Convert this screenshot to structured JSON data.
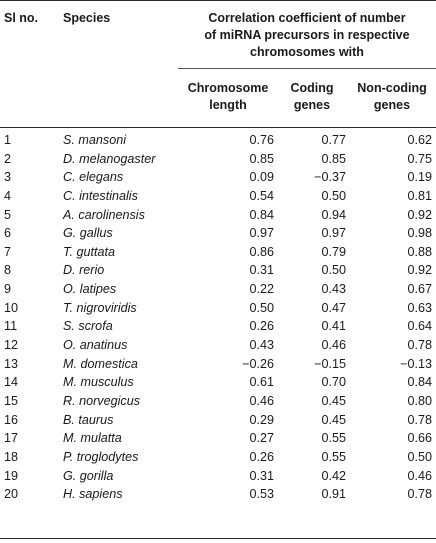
{
  "header": {
    "sl_no": "Sl no.",
    "species": "Species",
    "group_line1": "Correlation coefficient of number",
    "group_line2": "of miRNA precursors in respective",
    "group_line3": "chromosomes with",
    "col1_line1": "Chromosome",
    "col1_line2": "length",
    "col2_line1": "Coding",
    "col2_line2": "genes",
    "col3_line1": "Non-coding",
    "col3_line2": "genes"
  },
  "rows": [
    {
      "sl": "1",
      "species": "S. mansoni",
      "length": "0.76",
      "coding": "0.77",
      "noncoding": "0.62"
    },
    {
      "sl": "2",
      "species": "D. melanogaster",
      "length": "0.85",
      "coding": "0.85",
      "noncoding": "0.75"
    },
    {
      "sl": "3",
      "species": "C. elegans",
      "length": "0.09",
      "coding": "−0.37",
      "noncoding": "0.19"
    },
    {
      "sl": "4",
      "species": "C. intestinalis",
      "length": "0.54",
      "coding": "0.50",
      "noncoding": "0.81"
    },
    {
      "sl": "5",
      "species": "A. carolinensis",
      "length": "0.84",
      "coding": "0.94",
      "noncoding": "0.92"
    },
    {
      "sl": "6",
      "species": "G. gallus",
      "length": "0.97",
      "coding": "0.97",
      "noncoding": "0.98"
    },
    {
      "sl": "7",
      "species": "T. guttata",
      "length": "0.86",
      "coding": "0.79",
      "noncoding": "0.88"
    },
    {
      "sl": "8",
      "species": "D. rerio",
      "length": "0.31",
      "coding": "0.50",
      "noncoding": "0.92"
    },
    {
      "sl": "9",
      "species": "O. latipes",
      "length": "0.22",
      "coding": "0.43",
      "noncoding": "0.67"
    },
    {
      "sl": "10",
      "species": "T. nigroviridis",
      "length": "0.50",
      "coding": "0.47",
      "noncoding": "0.63"
    },
    {
      "sl": "11",
      "species": "S. scrofa",
      "length": "0.26",
      "coding": "0.41",
      "noncoding": "0.64"
    },
    {
      "sl": "12",
      "species": "O. anatinus",
      "length": "0.43",
      "coding": "0.46",
      "noncoding": "0.78"
    },
    {
      "sl": "13",
      "species": "M. domestica",
      "length": "−0.26",
      "coding": "−0.15",
      "noncoding": "−0.13"
    },
    {
      "sl": "14",
      "species": "M. musculus",
      "length": "0.61",
      "coding": "0.70",
      "noncoding": "0.84"
    },
    {
      "sl": "15",
      "species": "R. norvegicus",
      "length": "0.46",
      "coding": "0.45",
      "noncoding": "0.80"
    },
    {
      "sl": "16",
      "species": "B. taurus",
      "length": "0.29",
      "coding": "0.45",
      "noncoding": "0.78"
    },
    {
      "sl": "17",
      "species": "M. mulatta",
      "length": "0.27",
      "coding": "0.55",
      "noncoding": "0.66"
    },
    {
      "sl": "18",
      "species": "P. troglodytes",
      "length": "0.26",
      "coding": "0.55",
      "noncoding": "0.50"
    },
    {
      "sl": "19",
      "species": "G. gorilla",
      "length": "0.31",
      "coding": "0.42",
      "noncoding": "0.46"
    },
    {
      "sl": "20",
      "species": "H. sapiens",
      "length": "0.53",
      "coding": "0.91",
      "noncoding": "0.78"
    }
  ]
}
